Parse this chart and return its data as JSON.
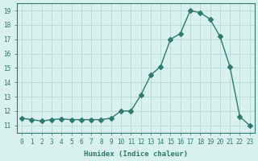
{
  "x": [
    0,
    1,
    2,
    3,
    4,
    5,
    6,
    7,
    8,
    9,
    10,
    11,
    12,
    13,
    14,
    15,
    16,
    17,
    18,
    19,
    20,
    21,
    22,
    23
  ],
  "y": [
    11.5,
    11.4,
    11.3,
    11.4,
    11.45,
    11.4,
    11.4,
    11.4,
    11.4,
    11.5,
    12.0,
    12.0,
    13.1,
    14.5,
    15.1,
    17.0,
    17.4,
    19.0,
    18.85,
    18.4,
    17.2,
    15.1,
    11.6,
    11.0
  ],
  "line_color": "#2d7a6e",
  "marker": "D",
  "marker_size": 3,
  "bg_color": "#d8f0ee",
  "grid_color": "#b0d4d0",
  "xlabel": "Humidex (Indice chaleur)",
  "ylim": [
    10.5,
    19.5
  ],
  "xlim": [
    -0.5,
    23.5
  ],
  "yticks": [
    11,
    12,
    13,
    14,
    15,
    16,
    17,
    18,
    19
  ],
  "xticks": [
    0,
    1,
    2,
    3,
    4,
    5,
    6,
    7,
    8,
    9,
    10,
    11,
    12,
    13,
    14,
    15,
    16,
    17,
    18,
    19,
    20,
    21,
    22,
    23
  ],
  "tick_color": "#2d7a6e",
  "label_color": "#2d7a6e",
  "spine_color": "#2d7a6e"
}
